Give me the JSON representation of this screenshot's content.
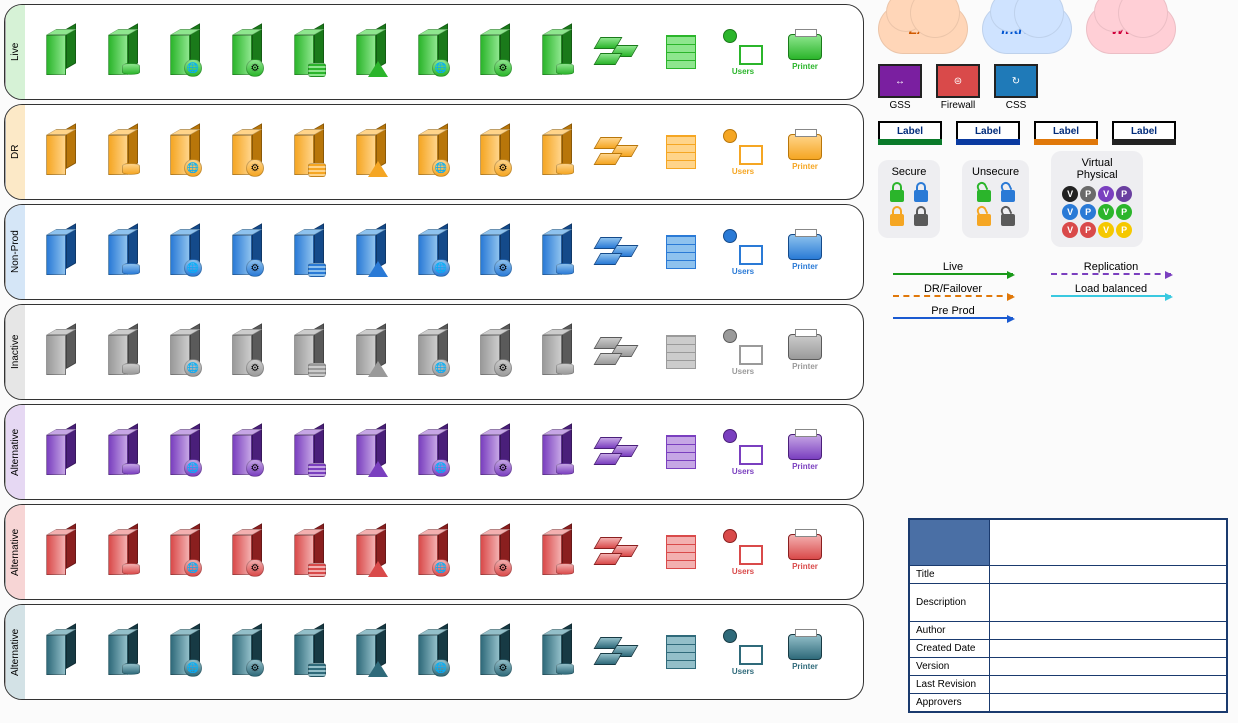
{
  "categories": [
    {
      "key": "live",
      "label": "Live",
      "main": "#2bb52b",
      "light": "#8ee68e",
      "dark": "#1a7a1a",
      "tab_bg": "#d6f2d6"
    },
    {
      "key": "dr",
      "label": "DR",
      "main": "#f5a623",
      "light": "#ffd48a",
      "dark": "#b8760a",
      "tab_bg": "#fce9c7"
    },
    {
      "key": "nonprod",
      "label": "Non-Prod",
      "main": "#2a7ad6",
      "light": "#8ec2ee",
      "dark": "#144a8a",
      "tab_bg": "#d5e6f7"
    },
    {
      "key": "inactive",
      "label": "Inactive",
      "main": "#9a9a9a",
      "light": "#cccccc",
      "dark": "#5a5a5a",
      "tab_bg": "#e6e6e6"
    },
    {
      "key": "alt1",
      "label": "Alternative",
      "main": "#7a3fbf",
      "light": "#c6a6e5",
      "dark": "#4a1f7a",
      "tab_bg": "#e6d8f3"
    },
    {
      "key": "alt2",
      "label": "Alternative",
      "main": "#d94a4a",
      "light": "#f3b0b0",
      "dark": "#8a1f1f",
      "tab_bg": "#f7d5d5"
    },
    {
      "key": "alt3",
      "label": "Alternative",
      "main": "#2f6a7a",
      "light": "#93bfc9",
      "dark": "#173a44",
      "tab_bg": "#d3e2e6"
    }
  ],
  "icon_variants": [
    {
      "name": "server-plain",
      "acc": null
    },
    {
      "name": "server-database",
      "acc": "cyl"
    },
    {
      "name": "server-globe",
      "acc": "globe"
    },
    {
      "name": "server-gear",
      "acc": "gear"
    },
    {
      "name": "server-coinstack",
      "acc": "stack"
    },
    {
      "name": "server-triangle",
      "acc": "tri"
    },
    {
      "name": "server-globe2",
      "acc": "globe"
    },
    {
      "name": "server-gear2",
      "acc": "gear"
    },
    {
      "name": "server-cylinder",
      "acc": "cyl"
    },
    {
      "name": "router-stack",
      "acc": null,
      "shape": "router"
    },
    {
      "name": "firewall",
      "acc": null,
      "shape": "brick"
    },
    {
      "name": "users",
      "acc": null,
      "shape": "users",
      "cap": "Users"
    },
    {
      "name": "printer",
      "acc": null,
      "shape": "printer",
      "cap": "Printer"
    }
  ],
  "clouds": [
    {
      "label": "LAN",
      "bg": "#ffd6b8",
      "text": "#d15a00"
    },
    {
      "label": "Intranet",
      "bg": "#cfe3ff",
      "text": "#0054d1"
    },
    {
      "label": "WWW",
      "bg": "#ffcfd6",
      "text": "#d1003b"
    }
  ],
  "devices": [
    {
      "name": "gss",
      "label": "GSS",
      "box_bg": "#7a1fa0",
      "inner": "↔"
    },
    {
      "name": "fw",
      "label": "Firewall",
      "box_bg": "#d94a4a",
      "inner": "⊜"
    },
    {
      "name": "css",
      "label": "CSS",
      "box_bg": "#1f7ab8",
      "inner": "↻"
    }
  ],
  "labels": [
    {
      "band": "#0a7a2a"
    },
    {
      "band": "#0a3aa0"
    },
    {
      "band": "#e0780a"
    },
    {
      "band": "#222222"
    }
  ],
  "label_text": "Label",
  "secure_title": "Secure",
  "unsecure_title": "Unsecure",
  "vp_title": "Virtual Physical",
  "lock_colors": [
    "#2bb52b",
    "#2a7ad6",
    "#f5a623",
    "#5a5a5a"
  ],
  "vp_dots": [
    {
      "row": [
        "#222",
        "#6a6a6a",
        "#7a3fbf",
        "#6a3fa0"
      ],
      "letters": [
        "V",
        "P",
        "V",
        "P"
      ]
    },
    {
      "row": [
        "#2a7ad6",
        "#2a7ad6",
        "#2bb52b",
        "#2bb52b"
      ],
      "letters": [
        "V",
        "P",
        "V",
        "P"
      ]
    },
    {
      "row": [
        "#d94a4a",
        "#d94a4a",
        "#f5c800",
        "#f5c800"
      ],
      "letters": [
        "V",
        "P",
        "V",
        "P"
      ]
    }
  ],
  "lines": [
    {
      "label": "Live",
      "color": "#1a9a1a",
      "style": "solid"
    },
    {
      "label": "Replication",
      "color": "#7a3fbf",
      "style": "dashed"
    },
    {
      "label": "DR/Failover",
      "color": "#e0780a",
      "style": "dashed"
    },
    {
      "label": "Load balanced",
      "color": "#3ac9e0",
      "style": "solid"
    },
    {
      "label": "Pre Prod",
      "color": "#1a5ad1",
      "style": "solid"
    }
  ],
  "info_fields": [
    "Title",
    "Description",
    "Author",
    "Created Date",
    "Version",
    "Last Revision",
    "Approvers"
  ]
}
